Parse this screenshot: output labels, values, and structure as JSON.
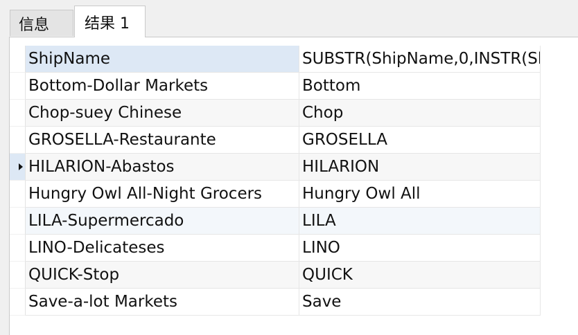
{
  "tabs": [
    {
      "label": "信息"
    },
    {
      "label": "结果 1"
    }
  ],
  "grid": {
    "columns": [
      "ShipName",
      "SUBSTR(ShipName,0,INSTR(Sh"
    ],
    "rows": [
      {
        "col1": "Bottom-Dollar Markets",
        "col2": "Bottom"
      },
      {
        "col1": "Chop-suey Chinese",
        "col2": "Chop"
      },
      {
        "col1": "GROSELLA-Restaurante",
        "col2": "GROSELLA"
      },
      {
        "col1": "HILARION-Abastos",
        "col2": "HILARION"
      },
      {
        "col1": "Hungry Owl All-Night Grocers",
        "col2": "Hungry Owl All"
      },
      {
        "col1": "LILA-Supermercado",
        "col2": "LILA"
      },
      {
        "col1": "LINO-Delicateses",
        "col2": "LINO"
      },
      {
        "col1": "QUICK-Stop",
        "col2": "QUICK"
      },
      {
        "col1": "Save-a-lot Markets",
        "col2": "Save"
      }
    ]
  },
  "colors": {
    "header_selected": "#dde8f5",
    "alt_row": "#f7f7f7",
    "grid_line": "#e6e6e6"
  }
}
